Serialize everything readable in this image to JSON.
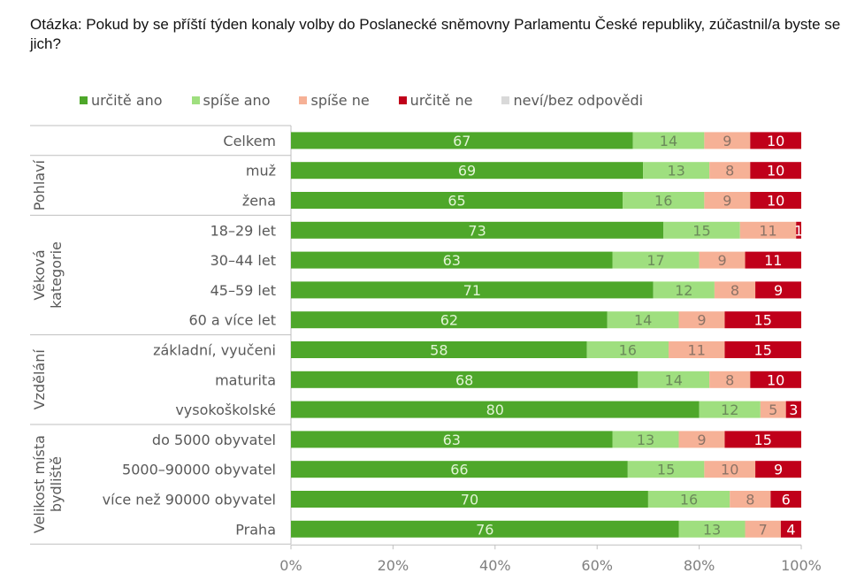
{
  "title": "Otázka: Pokud by se příští týden konaly volby do Poslanecké sněmovny Parlamentu České republiky, zúčastnil/a byste se jich?",
  "chart_data": {
    "type": "bar",
    "orientation": "horizontal",
    "stacked": true,
    "percent": true,
    "title": "Otázka: Pokud by se příští týden konaly volby do Poslanecké sněmovny Parlamentu České republiky, zúčastnil/a byste se jich?",
    "xlabel": "",
    "ylabel": "",
    "xlim": [
      0,
      100
    ],
    "x_ticks": [
      "0%",
      "20%",
      "40%",
      "60%",
      "80%",
      "100%"
    ],
    "legend_position": "top",
    "series": [
      {
        "name": "určitě ano",
        "color": "#4ea72a",
        "label_color": "#e2f5d5"
      },
      {
        "name": "spíše ano",
        "color": "#9fdf7f",
        "label_color": "#6b8a5a"
      },
      {
        "name": "spíše ne",
        "color": "#f6b196",
        "label_color": "#8c7366"
      },
      {
        "name": "určitě ne",
        "color": "#c0001a",
        "label_color": "#ffffff"
      },
      {
        "name": "neví/bez odpovědi",
        "color": "#d9d9d9",
        "label_color": "#595959"
      }
    ],
    "groups": [
      {
        "name": "",
        "rows": [
          {
            "category": "Celkem",
            "values": [
              67,
              14,
              9,
              10,
              0
            ]
          }
        ]
      },
      {
        "name": "Pohlaví",
        "rows": [
          {
            "category": "muž",
            "values": [
              69,
              13,
              8,
              10,
              0
            ]
          },
          {
            "category": "žena",
            "values": [
              65,
              16,
              9,
              10,
              0
            ]
          }
        ]
      },
      {
        "name": "Věková kategorie",
        "rows": [
          {
            "category": "18–29 let",
            "values": [
              73,
              15,
              11,
              1,
              0
            ]
          },
          {
            "category": "30–44 let",
            "values": [
              63,
              17,
              9,
              11,
              0
            ]
          },
          {
            "category": "45–59 let",
            "values": [
              71,
              12,
              8,
              9,
              0
            ]
          },
          {
            "category": "60 a více let",
            "values": [
              62,
              14,
              9,
              15,
              0
            ]
          }
        ]
      },
      {
        "name": "Vzdělání",
        "rows": [
          {
            "category": "základní, vyučeni",
            "values": [
              58,
              16,
              11,
              15,
              0
            ]
          },
          {
            "category": "maturita",
            "values": [
              68,
              14,
              8,
              10,
              0
            ]
          },
          {
            "category": "vysokoškolské",
            "values": [
              80,
              12,
              5,
              3,
              0
            ]
          }
        ]
      },
      {
        "name": "Velikost místa bydliště",
        "rows": [
          {
            "category": "do 5000 obyvatel",
            "values": [
              63,
              13,
              9,
              15,
              0
            ]
          },
          {
            "category": "5000–90000 obyvatel",
            "values": [
              66,
              15,
              10,
              9,
              0
            ]
          },
          {
            "category": "více než 90000 obyvatel",
            "values": [
              70,
              16,
              8,
              6,
              0
            ]
          },
          {
            "category": "Praha",
            "values": [
              76,
              13,
              7,
              4,
              0
            ]
          }
        ]
      }
    ]
  }
}
